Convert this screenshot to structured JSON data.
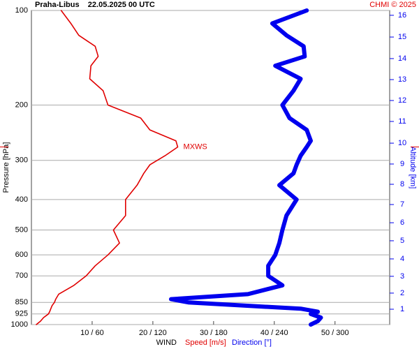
{
  "chart_data": {
    "type": "profile",
    "title": "Praha-Libus    22.05.2025 00 UTC",
    "credit": "CHMI © 2025",
    "y_label": "Pressure [hPa]",
    "y2_label": "Altitude [km]",
    "x_label": "WIND",
    "log_y": true,
    "grid": true,
    "ylim": [
      1000,
      100
    ],
    "yticks": [
      100,
      200,
      300,
      400,
      500,
      600,
      700,
      850,
      925,
      1000
    ],
    "xlim": [
      0,
      59
    ],
    "x2lim": [
      0,
      354
    ],
    "xticks": [
      {
        "value": 10,
        "label": "10 / 60"
      },
      {
        "value": 20,
        "label": "20 / 120"
      },
      {
        "value": 30,
        "label": "30 / 180"
      },
      {
        "value": 40,
        "label": "40 / 240"
      },
      {
        "value": 50,
        "label": "50 / 300"
      }
    ],
    "y2ticks": [
      16,
      15,
      14,
      13,
      12,
      11,
      10,
      9,
      8,
      7,
      6,
      5,
      4,
      3,
      2,
      1
    ],
    "y2ticks_pressure": [
      103.6,
      121.5,
      142.3,
      166,
      193.5,
      225.6,
      264.5,
      308.2,
      357.6,
      414.8,
      474,
      541,
      618,
      702,
      794,
      893.6
    ],
    "annotation": {
      "text": "MXWS",
      "pressure": 272,
      "color": "#e00000"
    },
    "pressure": [
      100,
      110,
      120,
      130,
      140,
      150,
      165,
      180,
      200,
      220,
      240,
      260,
      272,
      290,
      310,
      330,
      360,
      400,
      450,
      500,
      550,
      600,
      650,
      700,
      750,
      800,
      830,
      850,
      870,
      890,
      910,
      925,
      950,
      975,
      1000
    ],
    "series": [
      {
        "name": "Speed [m/s]",
        "color": "#e00000",
        "width": 1.6,
        "values": [
          4.9,
          6.5,
          7.8,
          10.5,
          11,
          9.8,
          9.6,
          11.8,
          12.6,
          18,
          19.5,
          23.8,
          24.1,
          22,
          19.5,
          18.5,
          17.4,
          15.5,
          15.5,
          13.5,
          14.5,
          12.6,
          10.5,
          9,
          7,
          4.5,
          4,
          3.8,
          3.4,
          3.2,
          3,
          2.8,
          2,
          1.5,
          0.8
        ]
      },
      {
        "name": "Direction [°]",
        "color": "#0000ee",
        "width": 6,
        "axis": "x2",
        "values": [
          272,
          238,
          252,
          269,
          270,
          241,
          266,
          259,
          248,
          255,
          272,
          276,
          272,
          266,
          262,
          259,
          245,
          262,
          252,
          248,
          245,
          241,
          234,
          234,
          248,
          214,
          138,
          155,
          210,
          266,
          283,
          276,
          286,
          283,
          276
        ]
      }
    ]
  }
}
